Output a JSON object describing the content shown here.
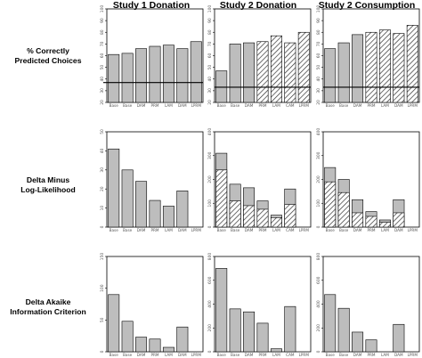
{
  "figure": {
    "columns": [
      "Study 1 Donation",
      "Study 2 Donation",
      "Study 2 Consumption"
    ],
    "rows": [
      [
        "% Correctly",
        "Predicted Choices"
      ],
      [
        "Delta Minus",
        "Log-Likelihood"
      ],
      [
        "Delta Akaike",
        "Information Criterion"
      ]
    ]
  },
  "colors": {
    "solid_bar": "#bdbdbd",
    "hatch_fill": "#ffffff",
    "hatch_line": "#333333",
    "axis": "#000000",
    "reference_line": "#000000"
  },
  "chart_data": [
    {
      "id": "r1c1",
      "type": "bar",
      "column": "Study 1 Donation",
      "row": "% Correctly Predicted Choices",
      "categories": [
        "Base",
        "Base",
        "DAM",
        "PRM",
        "LAM",
        "DAM",
        "LPRM"
      ],
      "values": [
        61,
        62,
        66,
        68,
        69,
        66,
        72
      ],
      "hatched": [
        false,
        false,
        false,
        false,
        false,
        false,
        false
      ],
      "ylim": [
        20,
        100
      ],
      "yticks": [
        20,
        30,
        40,
        50,
        60,
        70,
        80,
        90,
        100
      ],
      "hline": 37
    },
    {
      "id": "r1c2",
      "type": "bar",
      "column": "Study 2 Donation",
      "row": "% Correctly Predicted Choices",
      "categories": [
        "Base",
        "Base",
        "DAM",
        "PRM",
        "LAM",
        "CAM",
        "LPRM"
      ],
      "values": [
        47,
        70,
        71,
        72,
        77,
        71,
        80
      ],
      "hatched": [
        false,
        false,
        false,
        true,
        true,
        true,
        true
      ],
      "ylim": [
        20,
        100
      ],
      "yticks": [
        20,
        30,
        40,
        50,
        60,
        70,
        80,
        90,
        100
      ],
      "hline": 33
    },
    {
      "id": "r1c3",
      "type": "bar",
      "column": "Study 2 Consumption",
      "row": "% Correctly Predicted Choices",
      "categories": [
        "Base",
        "Base",
        "DAM",
        "PRM",
        "LAM",
        "DAM",
        "LPRM"
      ],
      "values": [
        66,
        71,
        78,
        80,
        82,
        79,
        86
      ],
      "hatched": [
        false,
        false,
        false,
        true,
        true,
        true,
        true
      ],
      "ylim": [
        20,
        100
      ],
      "yticks": [
        20,
        30,
        40,
        50,
        60,
        70,
        80,
        90,
        100
      ],
      "hline": 33
    },
    {
      "id": "r2c1",
      "type": "bar",
      "column": "Study 1 Donation",
      "row": "Delta Minus Log-Likelihood",
      "categories": [
        "Base",
        "Base",
        "DAM",
        "PRM",
        "LAM",
        "DAM",
        "LPRM"
      ],
      "values": [
        41,
        30,
        24,
        14,
        11,
        19,
        0
      ],
      "hatched_part": [
        0,
        0,
        0,
        0,
        0,
        0,
        0
      ],
      "ylim": [
        0,
        50
      ],
      "yticks": [
        0,
        10,
        20,
        30,
        40,
        50
      ]
    },
    {
      "id": "r2c2",
      "type": "bar",
      "column": "Study 2 Donation",
      "row": "Delta Minus Log-Likelihood",
      "categories": [
        "Base",
        "Base",
        "DAM",
        "PRM",
        "LAM",
        "CAM",
        "LPRM"
      ],
      "values": [
        310,
        180,
        165,
        110,
        50,
        160,
        0
      ],
      "hatched_part": [
        240,
        110,
        90,
        75,
        40,
        95,
        0
      ],
      "ylim": [
        0,
        400
      ],
      "yticks": [
        0,
        100,
        200,
        300,
        400
      ]
    },
    {
      "id": "r2c3",
      "type": "bar",
      "column": "Study 2 Consumption",
      "row": "Delta Minus Log-Likelihood",
      "categories": [
        "Base",
        "Base",
        "DAM",
        "PRM",
        "LAM",
        "DAM",
        "LPRM"
      ],
      "values": [
        250,
        200,
        115,
        65,
        30,
        115,
        0
      ],
      "hatched_part": [
        190,
        145,
        60,
        45,
        20,
        60,
        0
      ],
      "ylim": [
        0,
        400
      ],
      "yticks": [
        0,
        100,
        200,
        300,
        400
      ]
    },
    {
      "id": "r3c1",
      "type": "bar",
      "column": "Study 1 Donation",
      "row": "Delta Akaike Information Criterion",
      "categories": [
        "Base",
        "Base",
        "DAM",
        "PRM",
        "LAM",
        "DAM",
        "LPRM"
      ],
      "values": [
        90,
        48,
        23,
        20,
        7,
        39,
        0
      ],
      "hatched": [
        false,
        false,
        false,
        false,
        false,
        false,
        false
      ],
      "ylim": [
        0,
        150
      ],
      "yticks": [
        0,
        50,
        100,
        150
      ]
    },
    {
      "id": "r3c2",
      "type": "bar",
      "column": "Study 2 Donation",
      "row": "Delta Akaike Information Criterion",
      "categories": [
        "Base",
        "Base",
        "DAM",
        "PRM",
        "LAM",
        "CAM",
        "LPRM"
      ],
      "values": [
        700,
        360,
        335,
        240,
        25,
        380,
        0
      ],
      "hatched": [
        false,
        false,
        false,
        false,
        false,
        false,
        false
      ],
      "ylim": [
        0,
        800
      ],
      "yticks": [
        0,
        200,
        400,
        600,
        800
      ]
    },
    {
      "id": "r3c3",
      "type": "bar",
      "column": "Study 2 Consumption",
      "row": "Delta Akaike Information Criterion",
      "categories": [
        "Base",
        "Base",
        "DAM",
        "PRM",
        "LAM",
        "DAM",
        "LPRM"
      ],
      "values": [
        480,
        365,
        165,
        100,
        0,
        230,
        0
      ],
      "hatched": [
        false,
        false,
        false,
        false,
        false,
        false,
        false
      ],
      "ylim": [
        0,
        800
      ],
      "yticks": [
        0,
        200,
        400,
        600,
        800
      ]
    }
  ]
}
